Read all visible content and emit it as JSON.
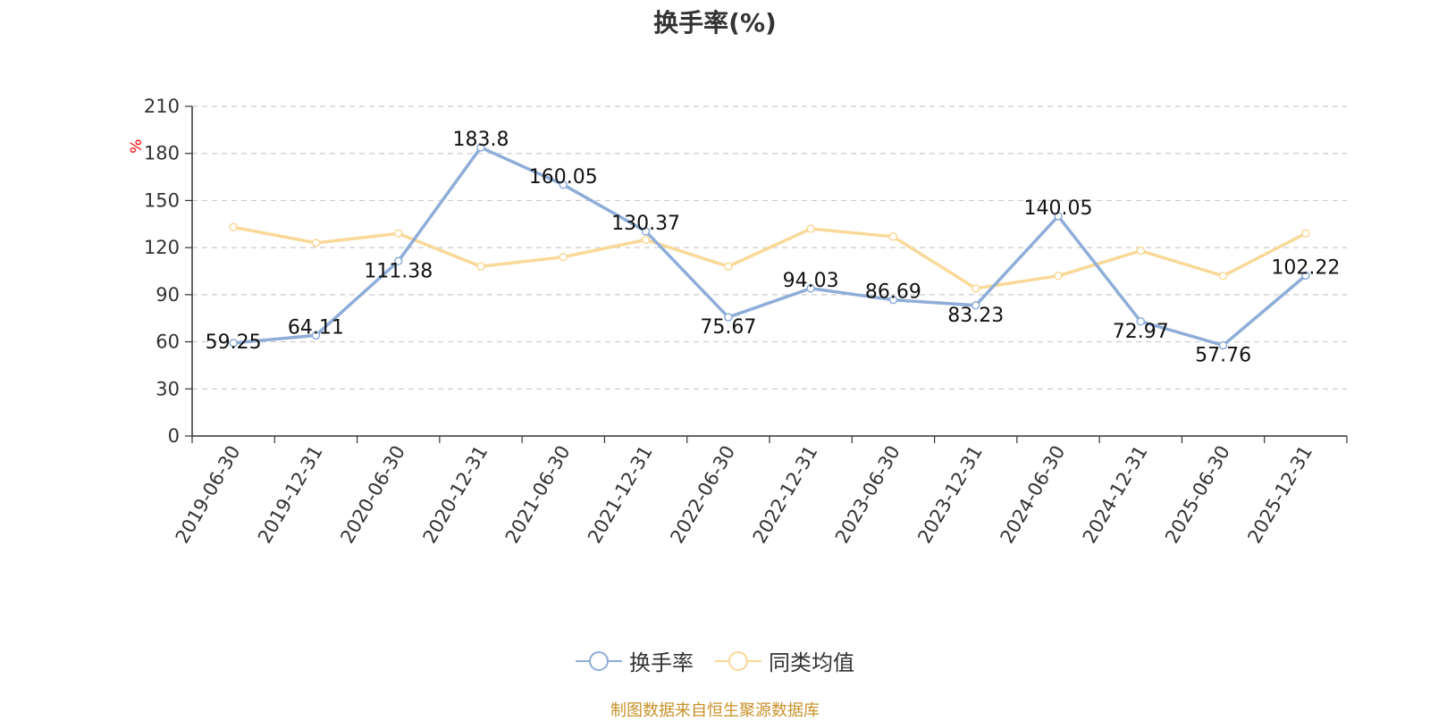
{
  "title": "换手率(%)",
  "source_note": "制图数据来自恒生聚源数据库",
  "colors": {
    "turnover": "#8eadd8",
    "peer_avg": "#fad898",
    "axis": "#333333",
    "grid": "#cccccc",
    "unit": "#ff0000",
    "source": "#c8922b"
  },
  "chart_data": {
    "type": "line",
    "title": "换手率(%)",
    "ylabel": "%",
    "xlabel": "",
    "ylim": [
      0,
      210
    ],
    "yticks": [
      0,
      30,
      60,
      90,
      120,
      150,
      180,
      210
    ],
    "grid": true,
    "legend_position": "bottom-center",
    "categories": [
      "2019-06-30",
      "2019-12-31",
      "2020-06-30",
      "2020-12-31",
      "2021-06-30",
      "2021-12-31",
      "2022-06-30",
      "2022-12-31",
      "2023-06-30",
      "2023-12-31",
      "2024-06-30",
      "2024-12-31",
      "2025-06-30",
      "2025-12-31"
    ],
    "series": [
      {
        "name": "换手率",
        "values": [
          59.25,
          64.11,
          111.38,
          183.8,
          160.05,
          130.37,
          75.67,
          94.03,
          86.69,
          83.23,
          140.05,
          72.97,
          57.76,
          102.22
        ],
        "labels": [
          "59.25",
          "64.11",
          "111.38",
          "183.8",
          "160.05",
          "130.37",
          "75.67",
          "94.03",
          "86.69",
          "83.23",
          "140.05",
          "72.97",
          "57.76",
          "102.22"
        ],
        "show_labels": true
      },
      {
        "name": "同类均值",
        "values": [
          133,
          123,
          129,
          108,
          114,
          125,
          108,
          132,
          127,
          94,
          102,
          118,
          102,
          129
        ],
        "show_labels": false
      }
    ]
  }
}
